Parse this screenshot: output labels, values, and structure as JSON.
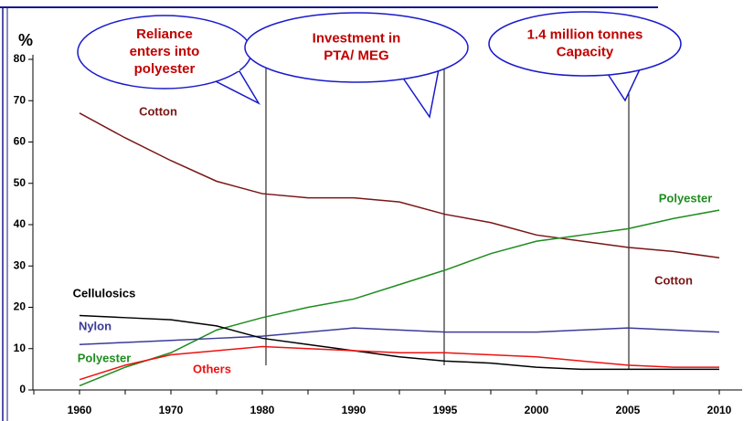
{
  "chart_data": {
    "type": "line",
    "ylabel": "%",
    "categories": [
      "1960",
      null,
      "1970",
      null,
      "1980",
      null,
      "1990",
      null,
      "1995",
      null,
      "2000",
      null,
      "2005",
      null,
      "2010"
    ],
    "ylim": [
      0,
      80
    ],
    "yticks": [
      0,
      10,
      20,
      30,
      40,
      50,
      60,
      70,
      80
    ],
    "series": [
      {
        "name": "Cotton",
        "color": "#7a1616",
        "values": [
          67,
          61,
          55.5,
          50.5,
          47.5,
          46.5,
          46.5,
          45.5,
          42.5,
          40.5,
          37.5,
          36,
          34.5,
          33.5,
          32
        ]
      },
      {
        "name": "Polyester",
        "color": "#1e8c1e",
        "values": [
          1,
          5.5,
          9,
          14.5,
          17.5,
          20,
          22,
          25.5,
          29,
          33,
          36,
          37.5,
          39,
          41.5,
          43.5
        ]
      },
      {
        "name": "Nylon",
        "color": "#3b3b99",
        "values": [
          11,
          11.5,
          12,
          12.5,
          13,
          14,
          15,
          14.5,
          14,
          14,
          14,
          14.5,
          15,
          14.5,
          14
        ]
      },
      {
        "name": "Cellulosics",
        "color": "#000000",
        "values": [
          18,
          17.5,
          17,
          15.5,
          12.5,
          11,
          9.5,
          8,
          7,
          6.5,
          5.5,
          5,
          5,
          5,
          5
        ]
      },
      {
        "name": "Others",
        "color": "#ee1111",
        "values": [
          2.5,
          6,
          8.5,
          9.5,
          10.5,
          10,
          9.5,
          9,
          9,
          8.5,
          8,
          7,
          6,
          5.5,
          5.5
        ]
      }
    ],
    "annotations": [
      [
        "Reliance",
        "enters into",
        "polyester"
      ],
      [
        "Investment in",
        "PTA/ MEG"
      ],
      [
        "1.4 million tonnes",
        "Capacity"
      ]
    ]
  }
}
